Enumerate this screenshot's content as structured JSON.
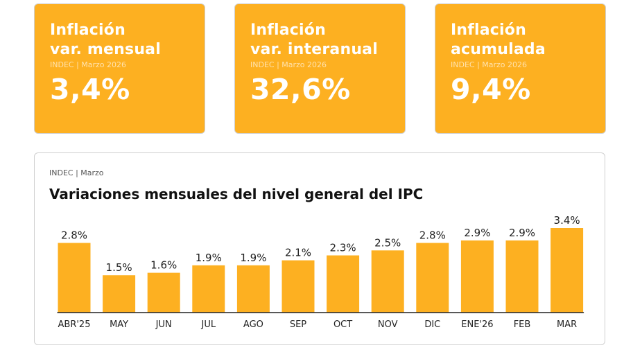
{
  "kpis": [
    {
      "title_line1": "Inflación",
      "title_line2": "var. mensual",
      "source": "INDEC | Marzo 2026",
      "value": "3,4%"
    },
    {
      "title_line1": "Inflación",
      "title_line2": "var. interanual",
      "source": "INDEC | Marzo 2026",
      "value": "32,6%"
    },
    {
      "title_line1": "Inflación",
      "title_line2": "acumulada",
      "source": "INDEC | Marzo 2026",
      "value": "9,4%"
    }
  ],
  "colors": {
    "accent": "#FDB021",
    "text": "#222222"
  },
  "chart_data": {
    "type": "bar",
    "source": "INDEC | Marzo",
    "title": "Variaciones mensuales del nivel general del IPC",
    "categories": [
      "ABR'25",
      "MAY",
      "JUN",
      "JUL",
      "AGO",
      "SEP",
      "OCT",
      "NOV",
      "DIC",
      "ENE'26",
      "FEB",
      "MAR"
    ],
    "values": [
      2.8,
      1.5,
      1.6,
      1.9,
      1.9,
      2.1,
      2.3,
      2.5,
      2.8,
      2.9,
      2.9,
      3.4
    ],
    "value_labels": [
      "2.8%",
      "1.5%",
      "1.6%",
      "1.9%",
      "1.9%",
      "2.1%",
      "2.3%",
      "2.5%",
      "2.8%",
      "2.9%",
      "2.9%",
      "3.4%"
    ],
    "xlabel": "",
    "ylabel": "",
    "ylim": [
      0,
      3.4
    ],
    "grid": false
  }
}
